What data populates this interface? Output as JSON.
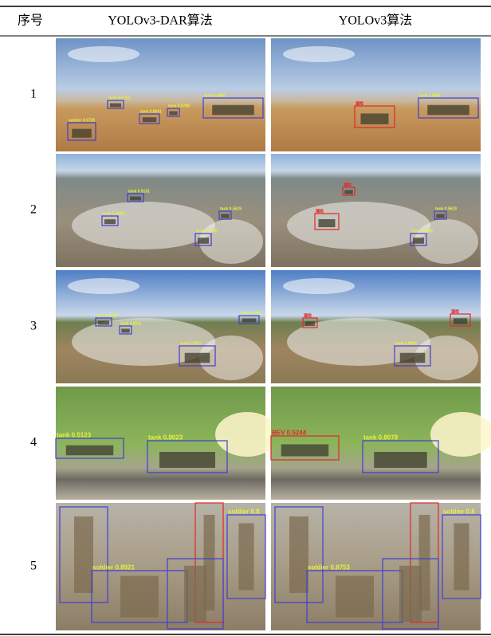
{
  "header": {
    "columns": [
      "序号",
      "YOLOv3-DAR算法",
      "YOLOv3算法"
    ]
  },
  "rows": [
    {
      "index": "1",
      "dar": {
        "labels": [
          "tank 0.8985",
          "tank 0.5753",
          "tank 0.8041",
          "tank 0.5780",
          "soldier 0.5728"
        ]
      },
      "yolo": {
        "labels": [
          "tank 0.8986",
          "漏检"
        ]
      }
    },
    {
      "index": "2",
      "dar": {
        "labels": [
          "tank 0.9131",
          "tank 0.8424",
          "tank 0.7866",
          "tank 0.5619"
        ]
      },
      "yolo": {
        "labels": [
          "漏检",
          "漏检",
          "tank 0.7866",
          "tank 0.5619"
        ]
      }
    },
    {
      "index": "3",
      "dar": {
        "labels": [
          "tank 0.5430",
          "tank 0.8993",
          "tank 0.8511",
          "tank 0.5482"
        ]
      },
      "yolo": {
        "labels": [
          "漏检",
          "漏检",
          "tank 0.8993"
        ]
      }
    },
    {
      "index": "4",
      "dar": {
        "labels": [
          "tank 0.5123",
          "tank 0.8023"
        ]
      },
      "yolo": {
        "labels": [
          "BEV 0.5244",
          "tank 0.8078"
        ]
      }
    },
    {
      "index": "5",
      "dar": {
        "labels": [
          "soldier 0.8921",
          "soldier 0.8"
        ]
      },
      "yolo": {
        "labels": [
          "soldier 0.8753",
          "soldier 0.8"
        ]
      }
    }
  ]
}
